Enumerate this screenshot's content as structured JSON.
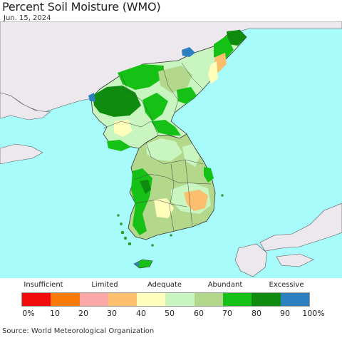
{
  "title": "Percent Soil Moisture (WMO)",
  "date": "Jun. 15, 2024",
  "source": "Source: World Meteorological Organization",
  "legend": {
    "categories": [
      "Insufficient",
      "Limited",
      "Adequate",
      "Abundant",
      "Excessive"
    ],
    "ticks": [
      "0%",
      "10",
      "20",
      "30",
      "40",
      "50",
      "60",
      "70",
      "80",
      "90",
      "100%"
    ],
    "colors": [
      "#f20d0d",
      "#fa7a0a",
      "#fba7a7",
      "#fbbf6e",
      "#ffffbb",
      "#c9f5c0",
      "#b3d88c",
      "#16c116",
      "#0f8c0f",
      "#2e7fbf"
    ]
  },
  "map_colors": {
    "sea": "#a7fbfb",
    "land_outside": "#ede8ee",
    "border": "#222222"
  }
}
